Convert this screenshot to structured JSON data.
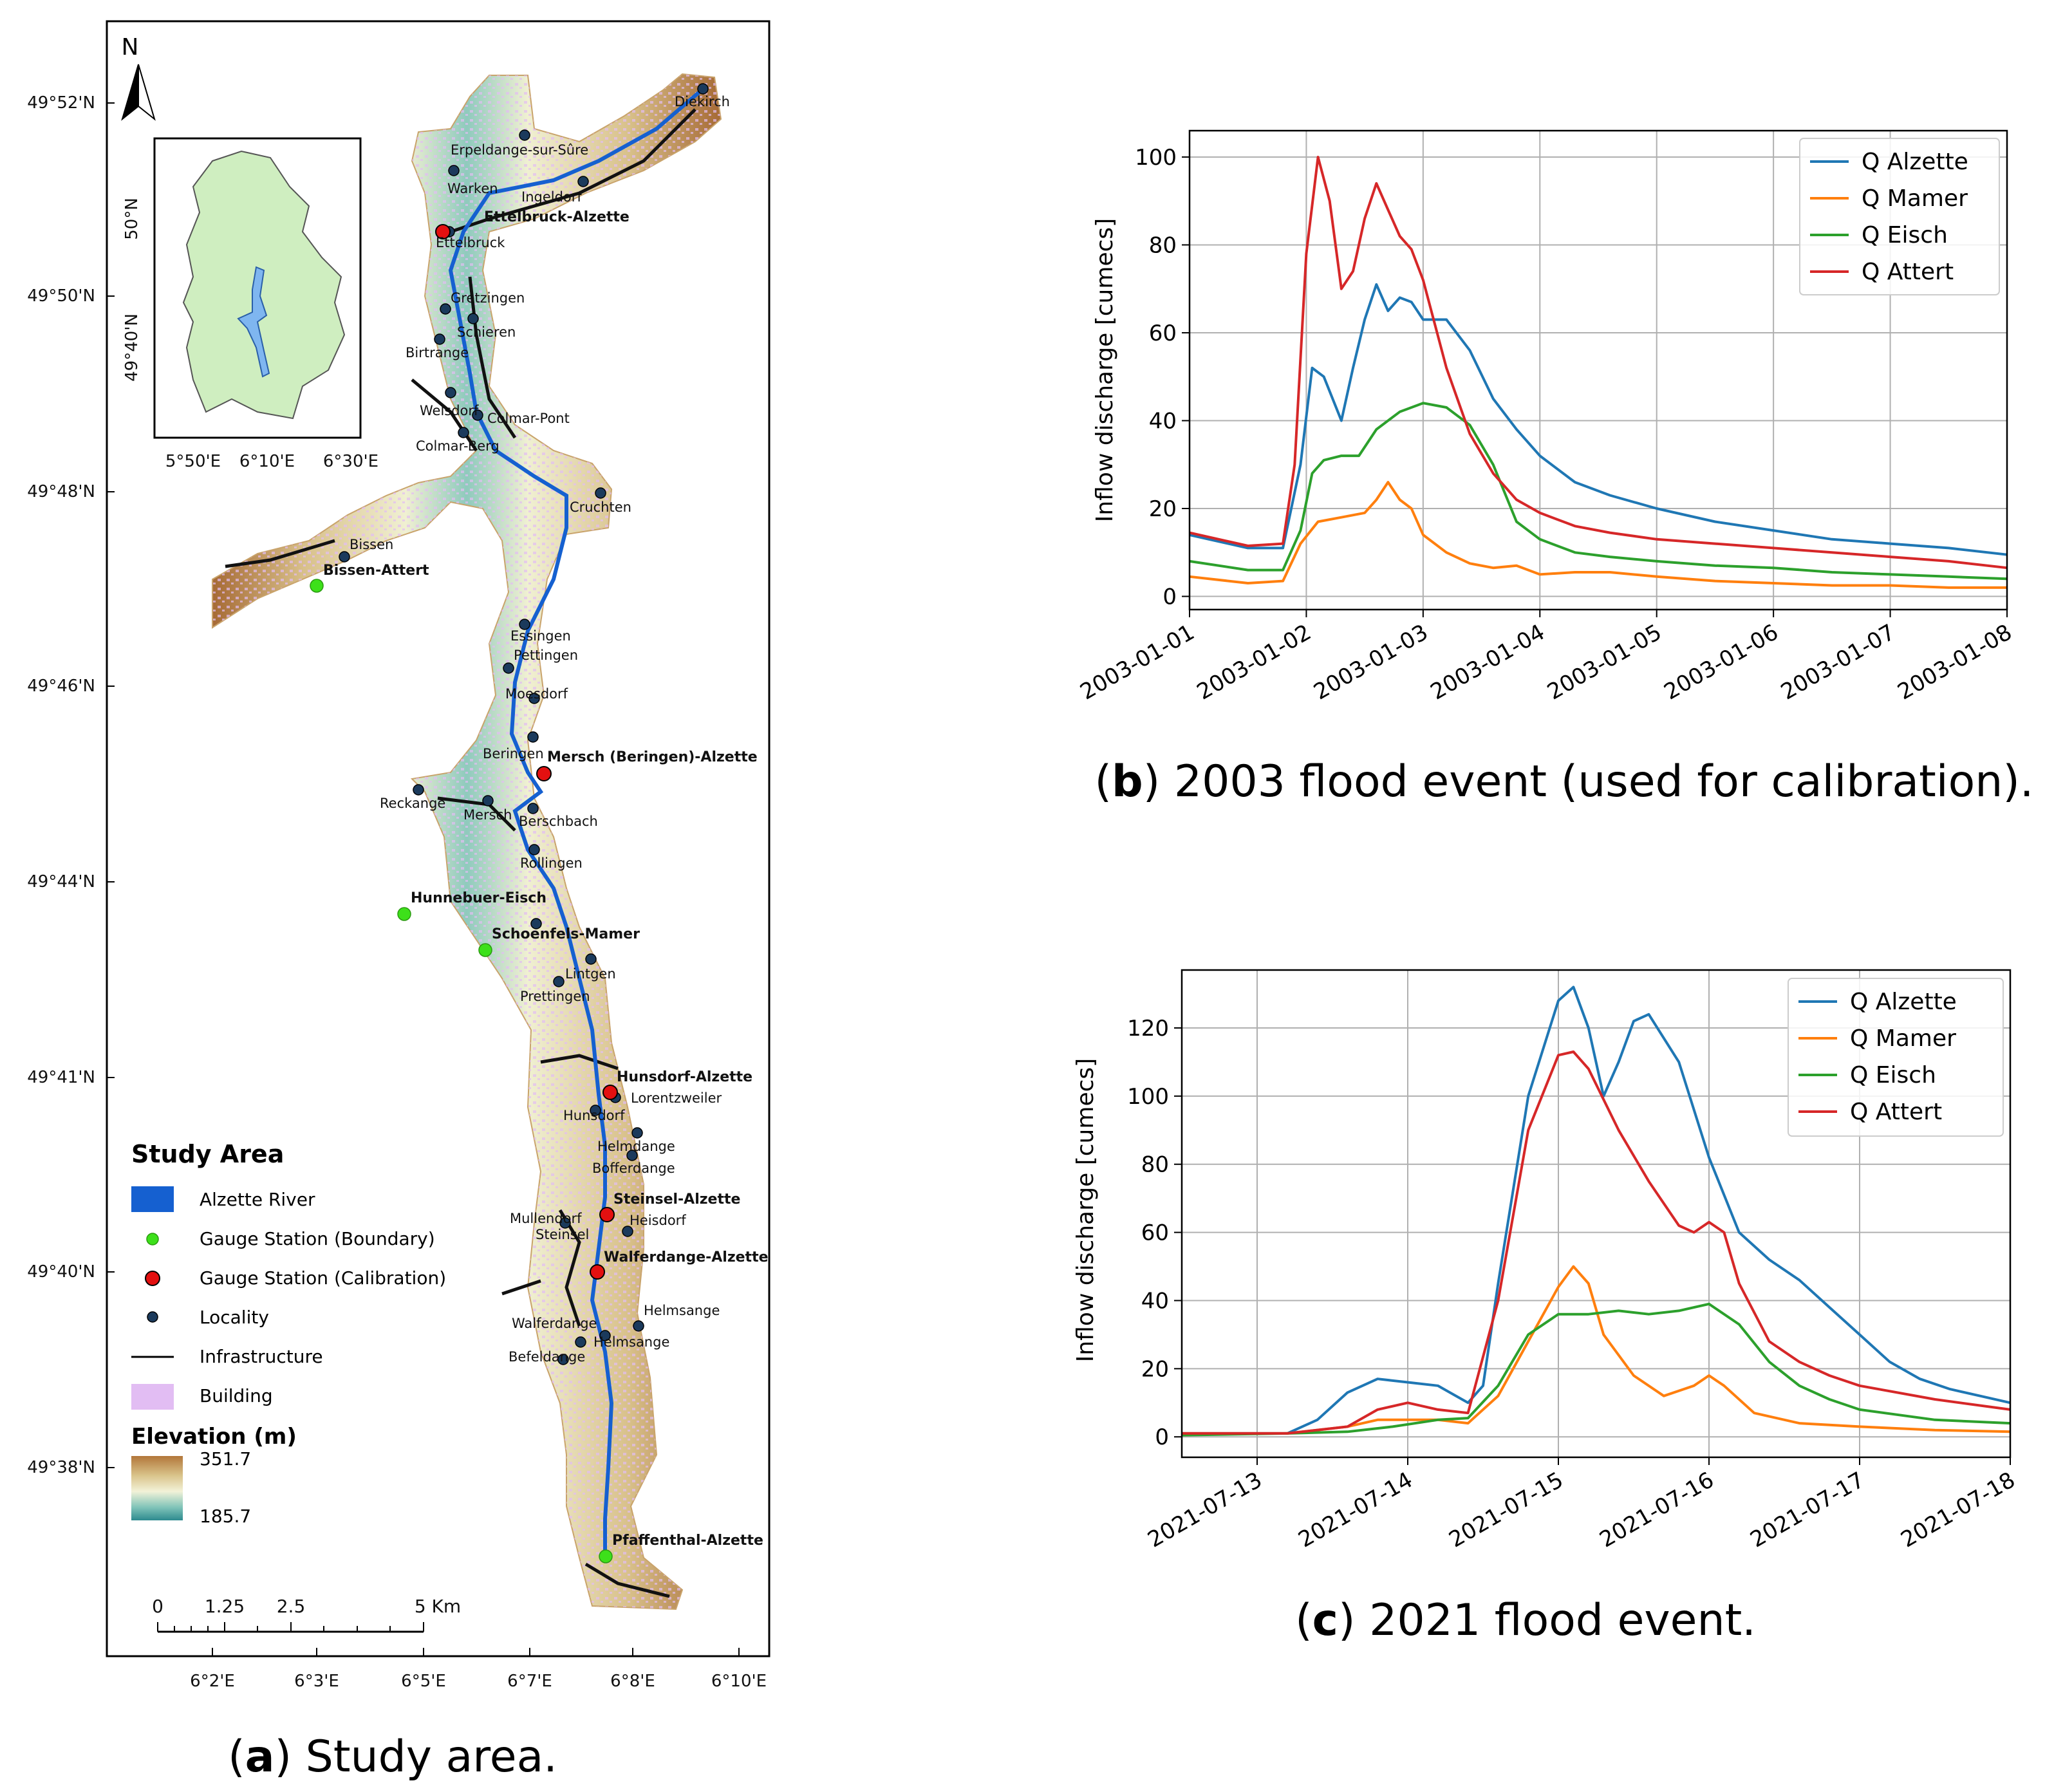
{
  "map": {
    "north_label": "N",
    "lat_ticks": [
      "49°52'N",
      "49°50'N",
      "49°48'N",
      "49°46'N",
      "49°44'N",
      "49°41'N",
      "49°40'N",
      "49°38'N"
    ],
    "lon_ticks": [
      "6°2'E",
      "6°3'E",
      "6°5'E",
      "6°7'E",
      "6°8'E",
      "6°10'E"
    ],
    "inset": {
      "lat_ticks": [
        "50°N",
        "49°40'N"
      ],
      "lon_ticks": [
        "5°50'E",
        "6°10'E",
        "6°30'E"
      ]
    },
    "localities": [
      "Diekirch",
      "Erpeldange-sur-Sûre",
      "Warken",
      "Ingeldorf",
      "Ettelbruck",
      "Gretzingen",
      "Schieren",
      "Birtrange",
      "Welsdorf",
      "Colmar-Pont",
      "Colmar-Berg",
      "Cruchten",
      "Bissen",
      "Essingen",
      "Pettingen",
      "Moesdorf",
      "Beringen",
      "Reckange",
      "Mersch",
      "Berschbach",
      "Rollingen",
      "Lintgen",
      "Prettingen",
      "Lorentzweiler",
      "Hunsdorf",
      "Helmdange",
      "Bofferdange",
      "Mullendorf",
      "Heisdorf",
      "Steinsel",
      "Helmsange",
      "Walferdange",
      "Befeldange"
    ],
    "boundary_stations": [
      "Bissen-Attert",
      "Hunnebuer-Eisch",
      "Schoenfels-Mamer",
      "Pfaffenthal-Alzette"
    ],
    "calibration_stations": [
      "Ettelbruck-Alzette",
      "Mersch (Beringen)-Alzette",
      "Hunsdorf-Alzette",
      "Steinsel-Alzette",
      "Walferdange-Alzette"
    ],
    "legend": {
      "title": "Study Area",
      "items": [
        "Alzette River",
        "Gauge Station (Boundary)",
        "Gauge Station (Calibration)",
        "Locality",
        "Infrastructure",
        "Building"
      ],
      "elevation_title": "Elevation (m)",
      "elevation_max": "351.7",
      "elevation_min": "185.7"
    },
    "scale": {
      "labels": [
        "0",
        "1.25",
        "2.5",
        "5 Km"
      ]
    },
    "caption_letter": "a",
    "caption_text": " Study area."
  },
  "colors": {
    "alzette": "#1f77b4",
    "mamer": "#ff7f0e",
    "eisch": "#2ca02c",
    "attert": "#d62728",
    "river": "#1560d0",
    "boundary_station": "#3de01a",
    "calibration_station": "#e31010",
    "building": "#e2bdf3"
  },
  "chart_data": [
    {
      "type": "line",
      "title": "",
      "caption_letter": "b",
      "caption_text": " 2003 flood event (used for calibration).",
      "xlabel": "",
      "ylabel": "Inflow discharge [cumecs]",
      "xlim": [
        0,
        7
      ],
      "ylim": [
        -3,
        106
      ],
      "x_tick_labels": [
        "2003-01-01",
        "2003-01-02",
        "2003-01-03",
        "2003-01-04",
        "2003-01-05",
        "2003-01-06",
        "2003-01-07",
        "2003-01-08"
      ],
      "y_ticks": [
        0,
        20,
        40,
        60,
        80,
        100
      ],
      "legend_position": "top-right",
      "series": [
        {
          "name": "Q Alzette",
          "x": [
            0,
            0.5,
            0.8,
            0.95,
            1.05,
            1.15,
            1.3,
            1.4,
            1.5,
            1.6,
            1.7,
            1.8,
            1.9,
            2.0,
            2.2,
            2.4,
            2.6,
            2.8,
            3.0,
            3.3,
            3.6,
            4.0,
            4.5,
            5.0,
            5.5,
            6.0,
            6.5,
            7.0
          ],
          "values": [
            14,
            11,
            11,
            30,
            52,
            50,
            40,
            52,
            63,
            71,
            65,
            68,
            67,
            63,
            63,
            56,
            45,
            38,
            32,
            26,
            23,
            20,
            17,
            15,
            13,
            12,
            11,
            9.5
          ]
        },
        {
          "name": "Q Mamer",
          "x": [
            0,
            0.5,
            0.8,
            0.95,
            1.1,
            1.3,
            1.5,
            1.6,
            1.7,
            1.8,
            1.9,
            2.0,
            2.2,
            2.4,
            2.6,
            2.8,
            3.0,
            3.3,
            3.6,
            4.0,
            4.5,
            5.0,
            5.5,
            6.0,
            6.5,
            7.0
          ],
          "values": [
            4.5,
            3,
            3.5,
            12,
            17,
            18,
            19,
            22,
            26,
            22,
            20,
            14,
            10,
            7.5,
            6.5,
            7,
            5,
            5.5,
            5.5,
            4.5,
            3.5,
            3,
            2.5,
            2.5,
            2,
            2
          ]
        },
        {
          "name": "Q Eisch",
          "x": [
            0,
            0.5,
            0.8,
            0.95,
            1.05,
            1.15,
            1.3,
            1.45,
            1.6,
            1.8,
            2.0,
            2.2,
            2.4,
            2.6,
            2.8,
            3.0,
            3.3,
            3.6,
            4.0,
            4.5,
            5.0,
            5.5,
            6.0,
            6.5,
            7.0
          ],
          "values": [
            8,
            6,
            6,
            15,
            28,
            31,
            32,
            32,
            38,
            42,
            44,
            43,
            39,
            30,
            17,
            13,
            10,
            9,
            8,
            7,
            6.5,
            5.5,
            5,
            4.5,
            4
          ]
        },
        {
          "name": "Q Attert",
          "x": [
            0,
            0.5,
            0.8,
            0.9,
            1.0,
            1.1,
            1.2,
            1.3,
            1.4,
            1.5,
            1.6,
            1.7,
            1.8,
            1.9,
            2.0,
            2.2,
            2.4,
            2.6,
            2.8,
            3.0,
            3.3,
            3.6,
            4.0,
            4.5,
            5.0,
            5.5,
            6.0,
            6.5,
            7.0
          ],
          "values": [
            14.5,
            11.5,
            12,
            30,
            78,
            100,
            90,
            70,
            74,
            86,
            94,
            88,
            82,
            79,
            72,
            52,
            37,
            28,
            22,
            19,
            16,
            14.5,
            13,
            12,
            11,
            10,
            9,
            8,
            6.5
          ]
        }
      ]
    },
    {
      "type": "line",
      "title": "",
      "caption_letter": "c",
      "caption_text": " 2021 flood event.",
      "xlabel": "",
      "ylabel": "Inflow discharge [cumecs]",
      "xlim": [
        -0.5,
        5
      ],
      "ylim": [
        -6,
        137
      ],
      "x_tick_labels": [
        "2021-07-13",
        "2021-07-14",
        "2021-07-15",
        "2021-07-16",
        "2021-07-17",
        "2021-07-18"
      ],
      "y_ticks": [
        0,
        20,
        40,
        60,
        80,
        100,
        120
      ],
      "legend_position": "top-right",
      "series": [
        {
          "name": "Q Alzette",
          "x": [
            -0.5,
            0.2,
            0.4,
            0.6,
            0.8,
            1.0,
            1.2,
            1.4,
            1.5,
            1.6,
            1.8,
            2.0,
            2.1,
            2.2,
            2.3,
            2.4,
            2.5,
            2.6,
            2.8,
            3.0,
            3.2,
            3.4,
            3.6,
            3.8,
            4.0,
            4.2,
            4.4,
            4.6,
            4.8,
            5.0
          ],
          "values": [
            1,
            1,
            5,
            13,
            17,
            16,
            15,
            10,
            15,
            45,
            100,
            128,
            132,
            120,
            100,
            110,
            122,
            124,
            110,
            82,
            60,
            52,
            46,
            38,
            30,
            22,
            17,
            14,
            12,
            10
          ]
        },
        {
          "name": "Q Mamer",
          "x": [
            -0.5,
            0.2,
            0.4,
            0.6,
            0.8,
            1.0,
            1.2,
            1.4,
            1.6,
            1.8,
            2.0,
            2.1,
            2.2,
            2.3,
            2.5,
            2.7,
            2.9,
            3.0,
            3.1,
            3.3,
            3.6,
            4.0,
            4.5,
            5.0
          ],
          "values": [
            1,
            1,
            2,
            3,
            5,
            5,
            5,
            4,
            12,
            28,
            44,
            50,
            45,
            30,
            18,
            12,
            15,
            18,
            15,
            7,
            4,
            3,
            2,
            1.5
          ]
        },
        {
          "name": "Q Eisch",
          "x": [
            -0.5,
            0.2,
            0.6,
            0.9,
            1.2,
            1.4,
            1.6,
            1.8,
            2.0,
            2.2,
            2.4,
            2.6,
            2.8,
            3.0,
            3.2,
            3.4,
            3.6,
            3.8,
            4.0,
            4.5,
            5.0
          ],
          "values": [
            0.5,
            1,
            1.5,
            3,
            5,
            5.5,
            15,
            30,
            36,
            36,
            37,
            36,
            37,
            39,
            33,
            22,
            15,
            11,
            8,
            5,
            4
          ]
        },
        {
          "name": "Q Attert",
          "x": [
            -0.5,
            0.2,
            0.6,
            0.8,
            1.0,
            1.2,
            1.4,
            1.6,
            1.8,
            2.0,
            2.1,
            2.2,
            2.4,
            2.6,
            2.8,
            2.9,
            3.0,
            3.1,
            3.2,
            3.4,
            3.6,
            3.8,
            4.0,
            4.5,
            5.0
          ],
          "values": [
            1,
            1,
            3,
            8,
            10,
            8,
            7,
            40,
            90,
            112,
            113,
            108,
            90,
            75,
            62,
            60,
            63,
            60,
            45,
            28,
            22,
            18,
            15,
            11,
            8
          ]
        }
      ]
    }
  ]
}
